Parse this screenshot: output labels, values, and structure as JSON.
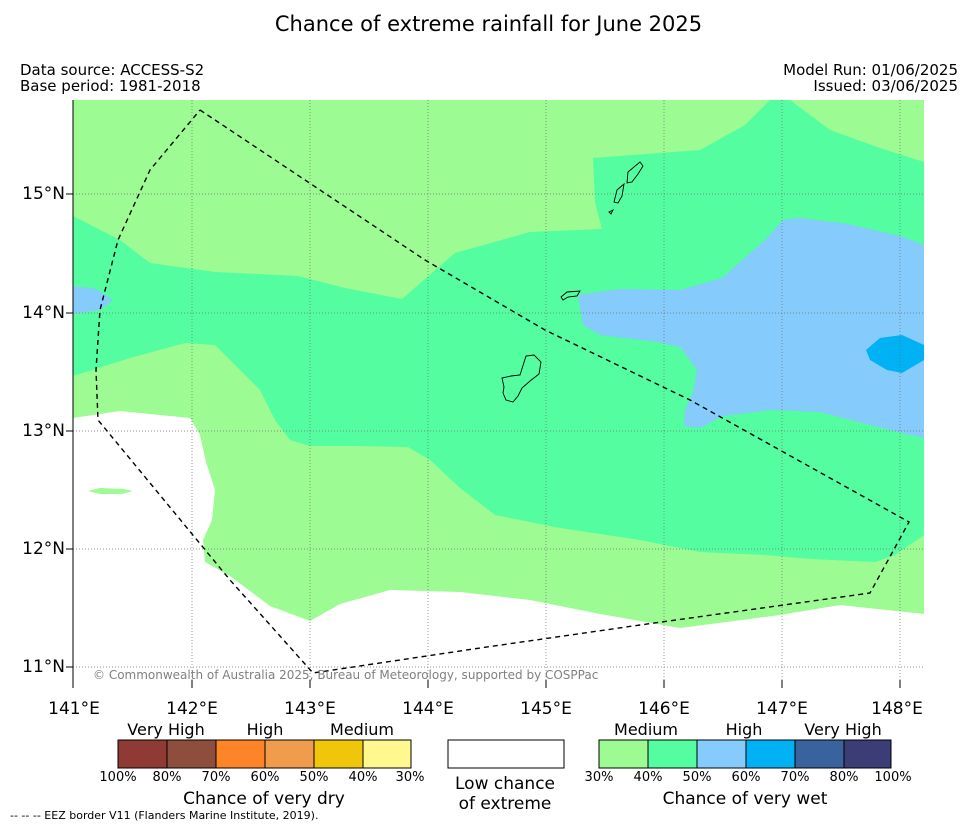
{
  "title": "Chance of extreme rainfall for June 2025",
  "header": {
    "data_source": "Data source: ACCESS-S2",
    "base_period": "Base period: 1981-2018",
    "model_run": "Model Run: 01/06/2025",
    "issued": "Issued: 03/06/2025"
  },
  "map": {
    "lat_labels": [
      "15°N",
      "14°N",
      "13°N",
      "12°N",
      "11°N"
    ],
    "lon_labels": [
      "141°E",
      "142°E",
      "143°E",
      "144°E",
      "145°E",
      "146°E",
      "147°E",
      "148°E"
    ],
    "copyright": "© Commonwealth of Australia 2025, Bureau of Meteorology, supported by COSPPac",
    "eez_note": "--  --  -- EEZ border V11 (Flanders Marine Institute, 2019).",
    "colors": {
      "wet_30_40": "#9dfb94",
      "wet_40_50": "#53fda0",
      "wet_50_60": "#85cbfb",
      "wet_60_70": "#00b1f4",
      "land_outline": "#000000",
      "eez_border": "#000000"
    }
  },
  "legend": {
    "dry": {
      "title": "Chance of very dry",
      "category_labels": [
        "Very High",
        "High",
        "Medium"
      ],
      "percent_labels": [
        "100%",
        "80%",
        "70%",
        "60%",
        "50%",
        "40%",
        "30%"
      ],
      "colors": [
        "#8f3a34",
        "#8d4e3d",
        "#fd8427",
        "#ef9d4c",
        "#f0c60a",
        "#fff88e"
      ]
    },
    "neutral": {
      "line1": "Low chance",
      "line2": "of extreme",
      "color": "#ffffff"
    },
    "wet": {
      "title": "Chance of very wet",
      "category_labels": [
        "Medium",
        "High",
        "Very High"
      ],
      "percent_labels": [
        "30%",
        "40%",
        "50%",
        "60%",
        "70%",
        "80%",
        "100%"
      ],
      "colors": [
        "#9dfb94",
        "#53fda0",
        "#85cbfb",
        "#00b1f4",
        "#3a629d",
        "#3c3d76"
      ]
    }
  }
}
